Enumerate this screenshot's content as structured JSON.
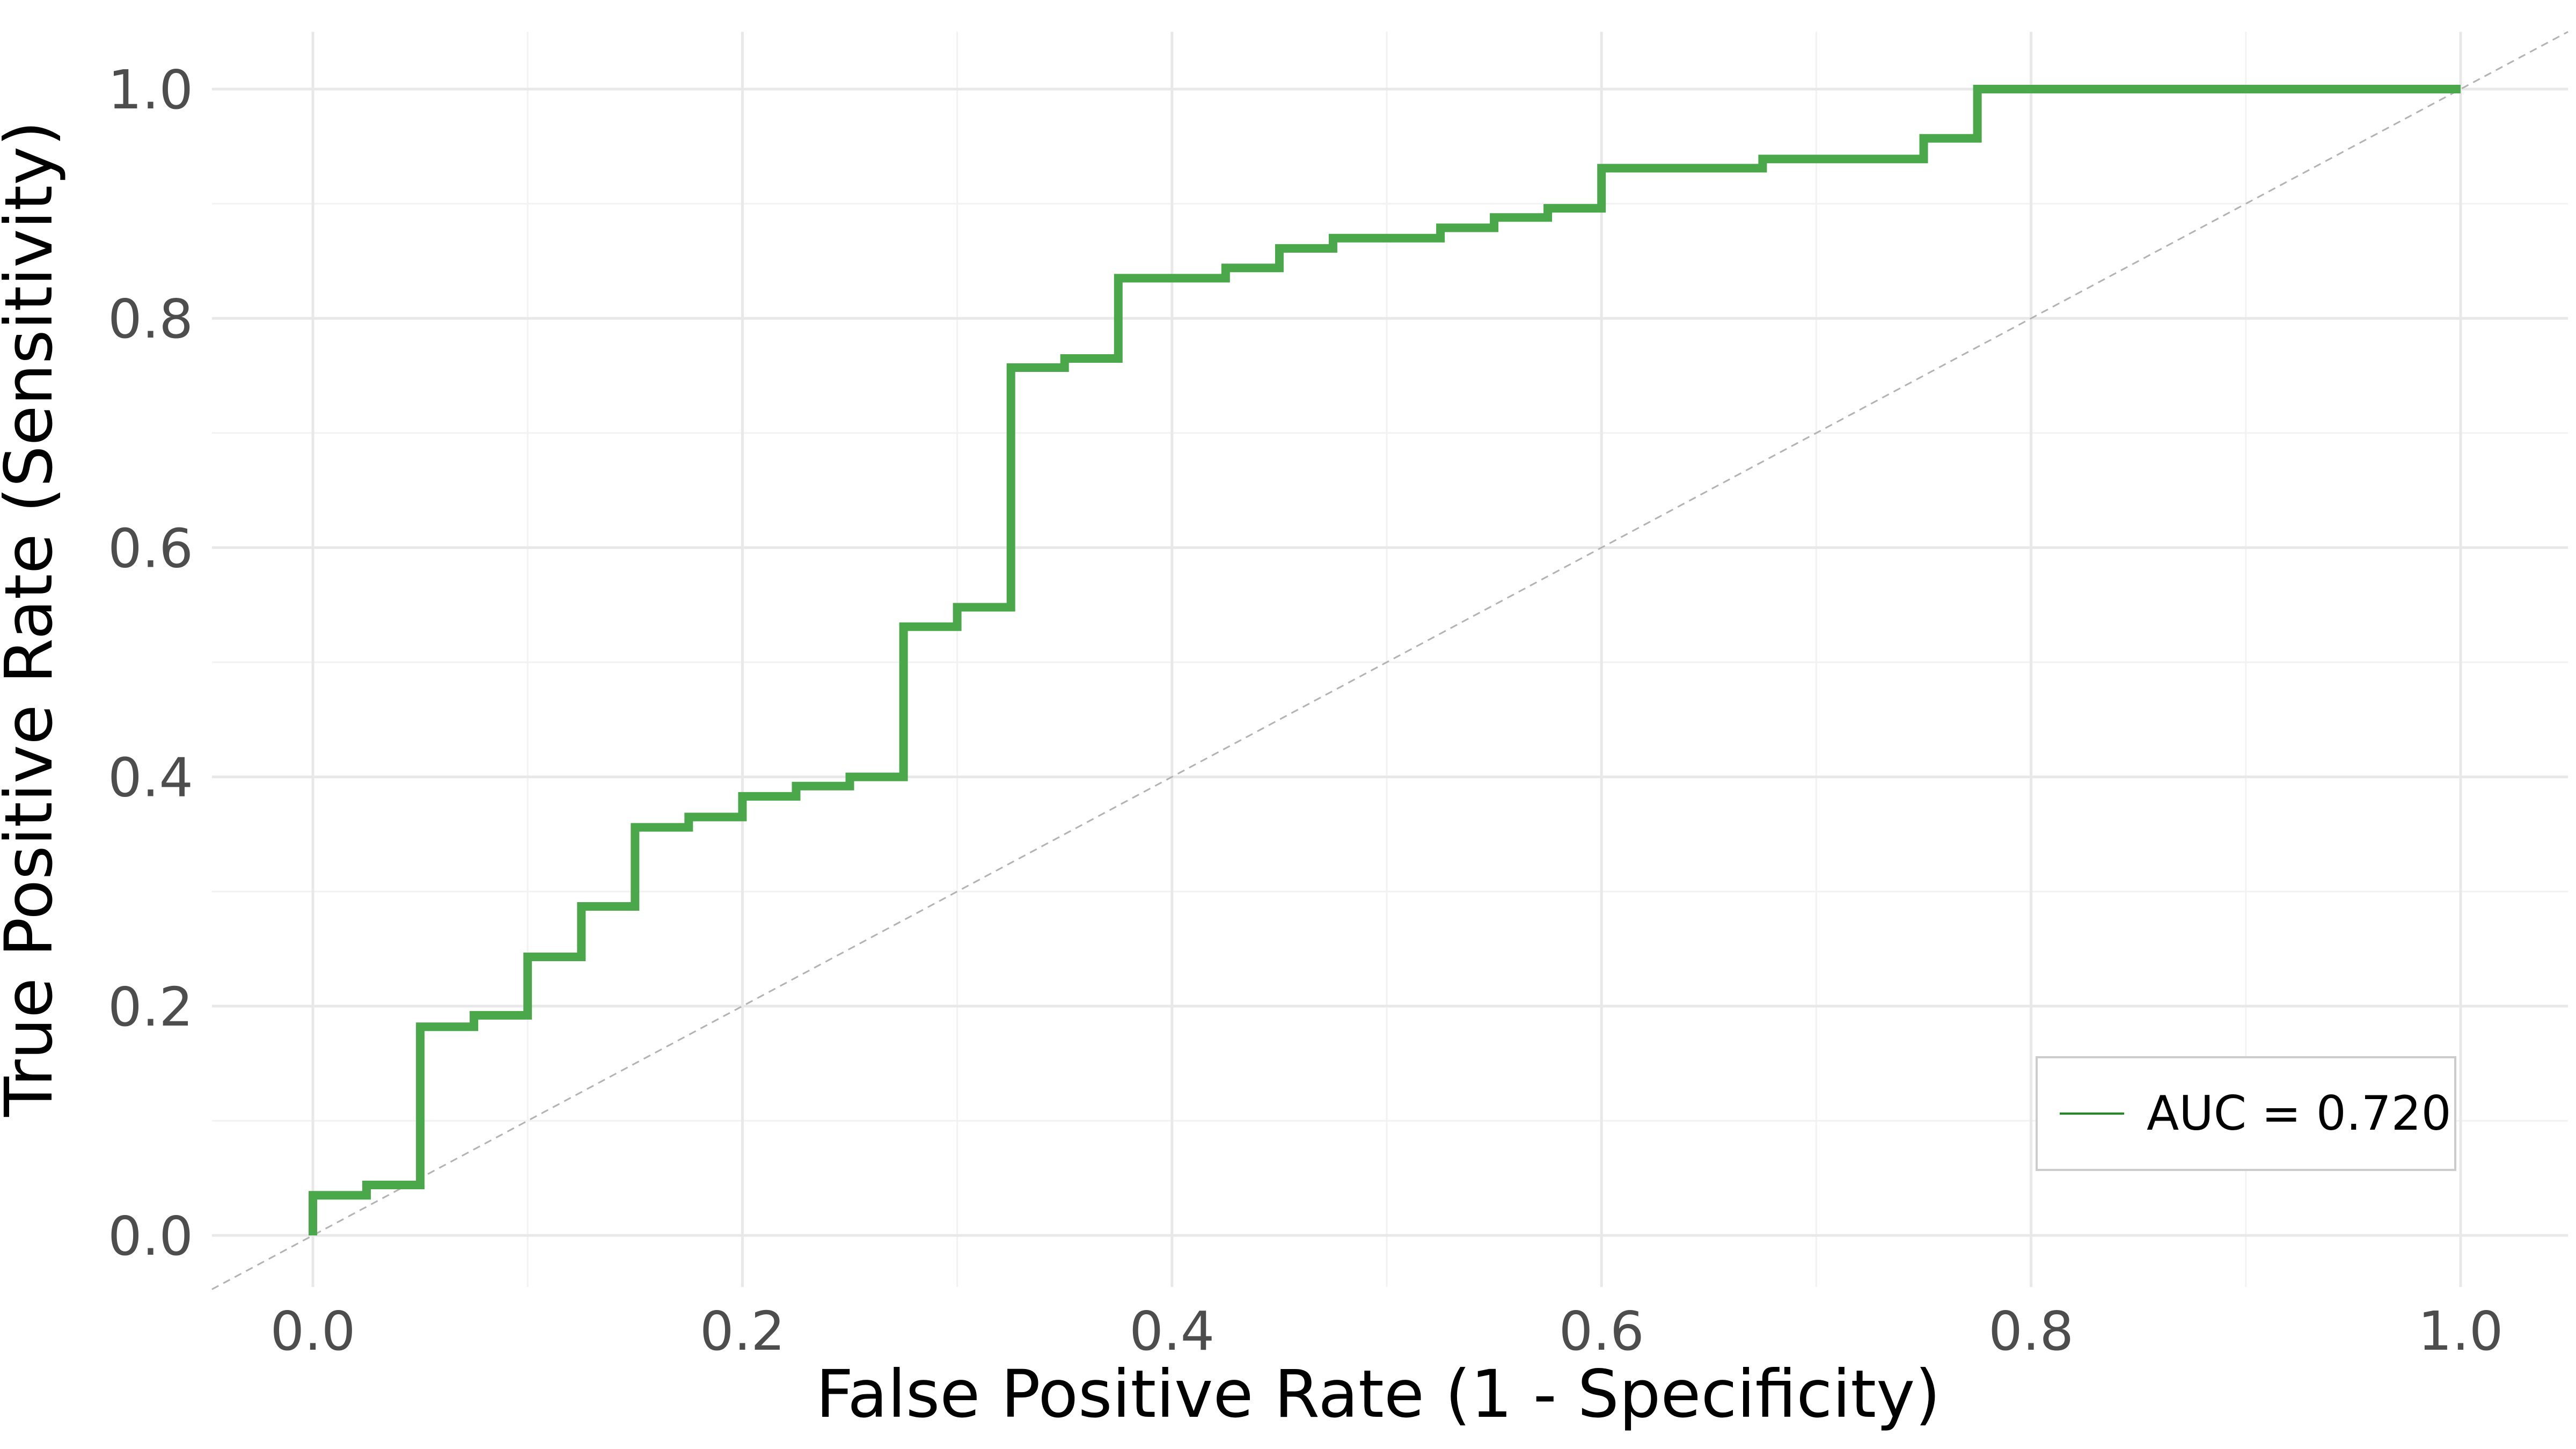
{
  "chart_data": {
    "type": "line",
    "title": "",
    "xlabel": "False Positive Rate (1 - Specificity)",
    "ylabel": "True Positive Rate (Sensitivity)",
    "xlim": [
      -0.047,
      1.05
    ],
    "ylim": [
      -0.045,
      1.05
    ],
    "x_ticks": [
      0.0,
      0.2,
      0.4,
      0.6,
      0.8,
      1.0
    ],
    "x_tick_labels": [
      "0.0",
      "0.2",
      "0.4",
      "0.6",
      "0.8",
      "1.0"
    ],
    "y_ticks": [
      0.0,
      0.2,
      0.4,
      0.6,
      0.8,
      1.0
    ],
    "y_tick_labels": [
      "0.0",
      "0.2",
      "0.4",
      "0.6",
      "0.8",
      "1.0"
    ],
    "grid": true,
    "legend_position": "bottom-right",
    "line_color": "#4aa84a",
    "legend_line_color": "#228b22",
    "diagonal_color": "#b3b3b3",
    "series": [
      {
        "name": "AUC = 0.720",
        "step": true,
        "points": [
          [
            0.0,
            0.0
          ],
          [
            0.0,
            0.035
          ],
          [
            0.025,
            0.035
          ],
          [
            0.025,
            0.044
          ],
          [
            0.05,
            0.044
          ],
          [
            0.05,
            0.182
          ],
          [
            0.075,
            0.182
          ],
          [
            0.075,
            0.192
          ],
          [
            0.1,
            0.192
          ],
          [
            0.1,
            0.243
          ],
          [
            0.125,
            0.243
          ],
          [
            0.125,
            0.287
          ],
          [
            0.15,
            0.287
          ],
          [
            0.15,
            0.356
          ],
          [
            0.175,
            0.356
          ],
          [
            0.175,
            0.365
          ],
          [
            0.2,
            0.365
          ],
          [
            0.2,
            0.383
          ],
          [
            0.225,
            0.383
          ],
          [
            0.225,
            0.392
          ],
          [
            0.25,
            0.392
          ],
          [
            0.25,
            0.4
          ],
          [
            0.275,
            0.4
          ],
          [
            0.275,
            0.531
          ],
          [
            0.3,
            0.531
          ],
          [
            0.3,
            0.548
          ],
          [
            0.325,
            0.548
          ],
          [
            0.325,
            0.757
          ],
          [
            0.35,
            0.757
          ],
          [
            0.35,
            0.765
          ],
          [
            0.375,
            0.765
          ],
          [
            0.375,
            0.835
          ],
          [
            0.425,
            0.835
          ],
          [
            0.425,
            0.844
          ],
          [
            0.45,
            0.844
          ],
          [
            0.45,
            0.861
          ],
          [
            0.475,
            0.861
          ],
          [
            0.475,
            0.87
          ],
          [
            0.525,
            0.87
          ],
          [
            0.525,
            0.879
          ],
          [
            0.55,
            0.879
          ],
          [
            0.55,
            0.888
          ],
          [
            0.575,
            0.888
          ],
          [
            0.575,
            0.896
          ],
          [
            0.6,
            0.896
          ],
          [
            0.6,
            0.931
          ],
          [
            0.675,
            0.931
          ],
          [
            0.675,
            0.939
          ],
          [
            0.75,
            0.939
          ],
          [
            0.75,
            0.957
          ],
          [
            0.775,
            0.957
          ],
          [
            0.775,
            1.0
          ],
          [
            1.0,
            1.0
          ]
        ]
      }
    ],
    "reference_line": {
      "style": "dashed",
      "from": [
        -0.047,
        -0.047
      ],
      "to": [
        1.05,
        1.05
      ]
    }
  }
}
